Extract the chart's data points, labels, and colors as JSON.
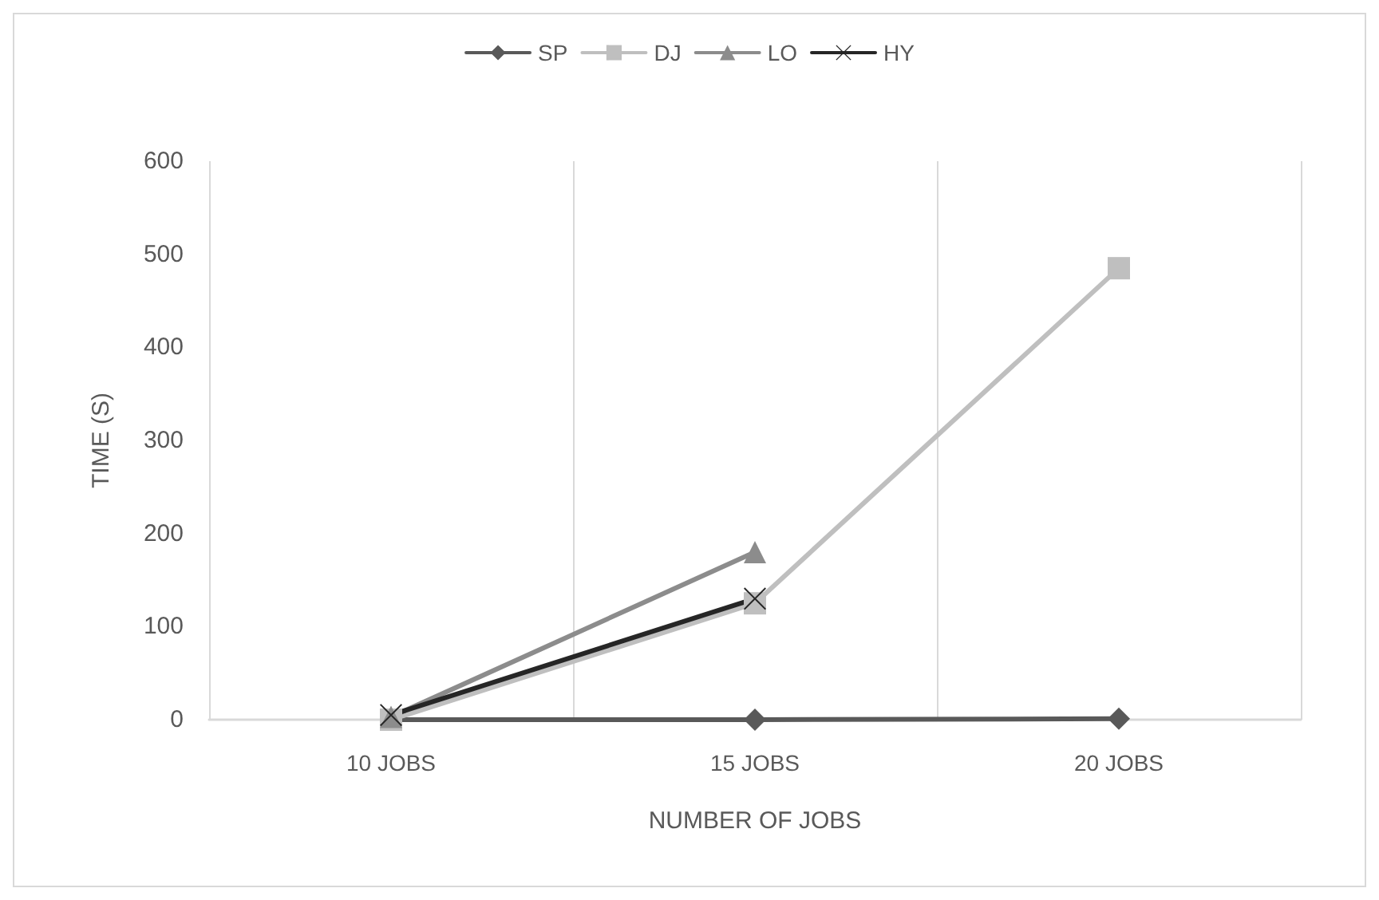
{
  "chart_data": {
    "type": "line",
    "xlabel": "NUMBER OF JOBS",
    "ylabel": "TIME (S)",
    "categories": [
      "10 JOBS",
      "15 JOBS",
      "20 JOBS"
    ],
    "series": [
      {
        "name": "SP",
        "color": "#595959",
        "marker": "diamond",
        "values": [
          0,
          0,
          1
        ]
      },
      {
        "name": "DJ",
        "color": "#bfbfbf",
        "marker": "square",
        "values": [
          0,
          125,
          485
        ]
      },
      {
        "name": "LO",
        "color": "#8c8c8c",
        "marker": "triangle",
        "values": [
          3,
          180,
          null
        ]
      },
      {
        "name": "HY",
        "color": "#262626",
        "marker": "cross",
        "values": [
          5,
          130,
          null
        ]
      }
    ],
    "ylim": [
      0,
      600
    ],
    "yticks": [
      0,
      100,
      200,
      300,
      400,
      500,
      600
    ],
    "grid": "x",
    "legend": "top"
  }
}
